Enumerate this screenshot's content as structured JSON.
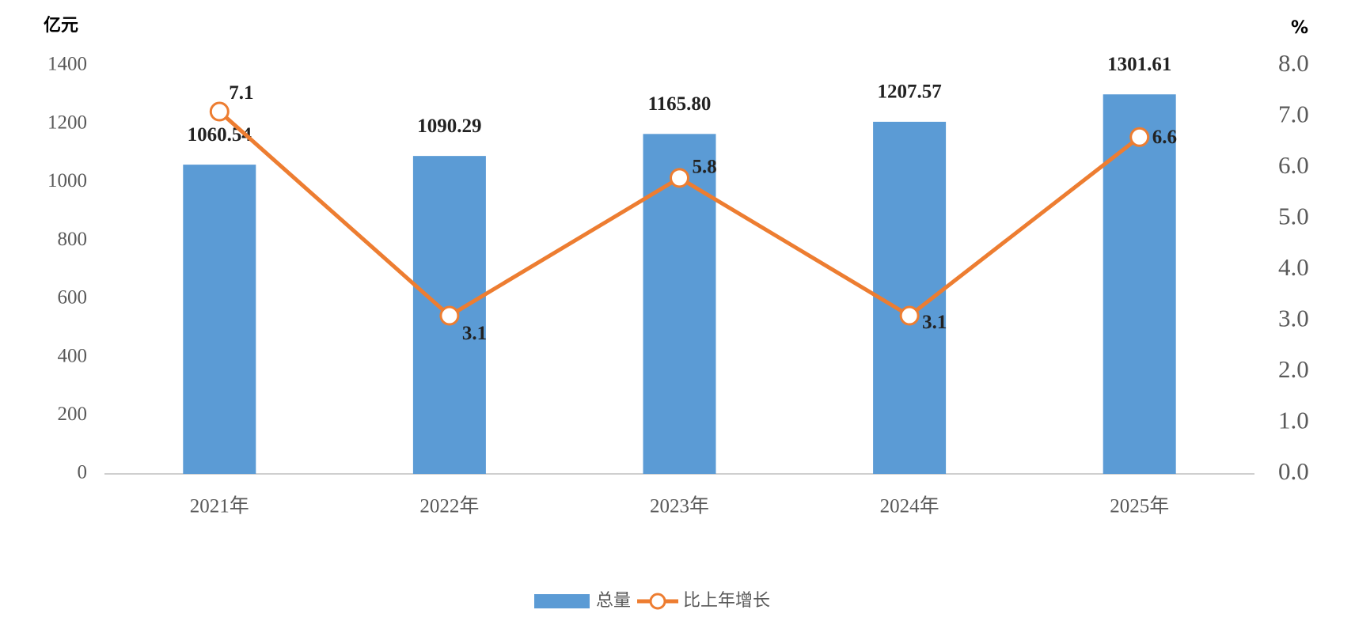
{
  "chart_data": {
    "type": "bar",
    "y_label": "亿元",
    "y2_label": "%",
    "categories": [
      "2021年",
      "2022年",
      "2023年",
      "2024年",
      "2025年"
    ],
    "series": [
      {
        "name": "总量",
        "type": "bar",
        "color": "#5b9bd5",
        "values": [
          1060.54,
          1090.29,
          1165.8,
          1207.57,
          1301.61
        ],
        "value_labels": [
          "1060.54",
          "1090.29",
          "1165.80",
          "1207.57",
          "1301.61"
        ]
      },
      {
        "name": "比上年增长",
        "type": "line",
        "axis": "y2",
        "color": "#ed7d31",
        "values": [
          7.1,
          3.1,
          5.8,
          3.1,
          6.6
        ]
      }
    ],
    "ylim": [
      0,
      1400
    ],
    "yticks": [
      0,
      200,
      400,
      600,
      800,
      1000,
      1200,
      1400
    ],
    "y2lim": [
      0,
      8
    ],
    "y2ticks": [
      {
        "value": 0,
        "label": "0.0"
      },
      {
        "value": 1,
        "label": "1.0"
      },
      {
        "value": 2,
        "label": "2.0"
      },
      {
        "value": 3,
        "label": "3.0"
      },
      {
        "value": 4,
        "label": "4.0"
      },
      {
        "value": 5,
        "label": "5.0"
      },
      {
        "value": 6,
        "label": "6.0"
      },
      {
        "value": 7,
        "label": "7.0"
      },
      {
        "value": 8,
        "label": "8.0"
      }
    ],
    "grid": false,
    "legend": "bottom"
  }
}
